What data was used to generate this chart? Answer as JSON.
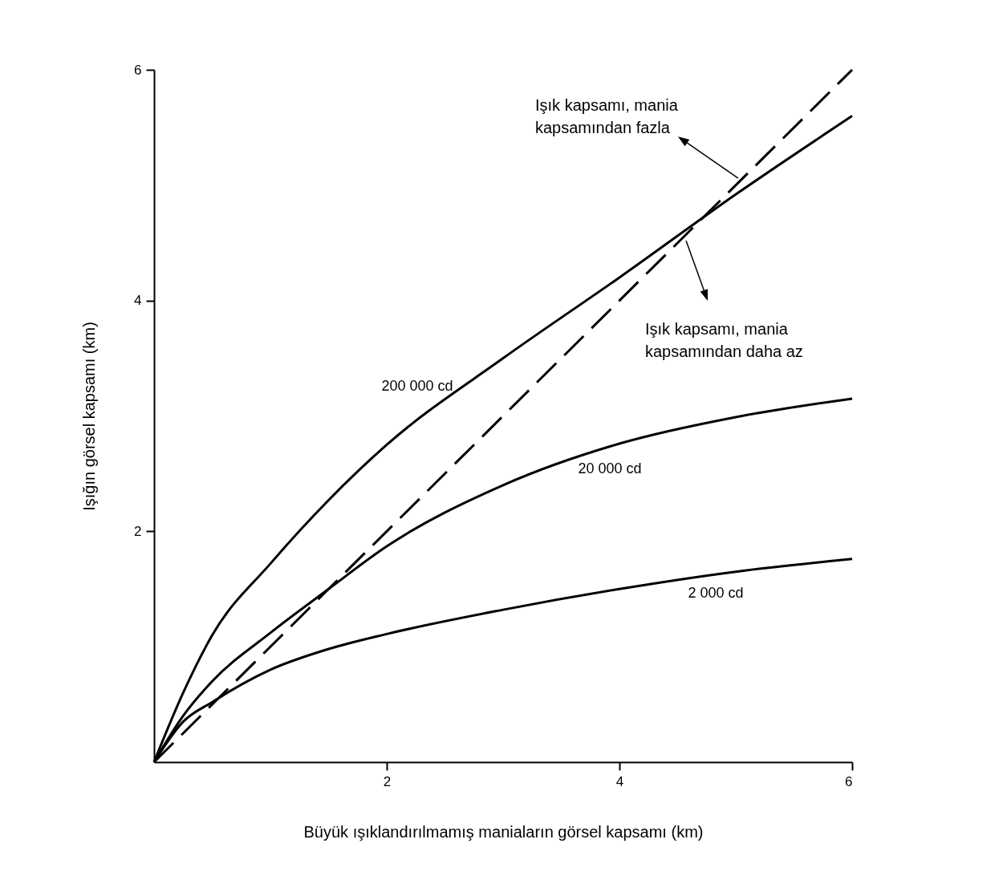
{
  "chart_data": {
    "type": "line",
    "xlabel": "Büyük ışıklandırılmamış maniaların görsel kapsamı (km)",
    "ylabel": "Işığın görsel kapsamı (km)",
    "xlim": [
      0,
      6
    ],
    "ylim": [
      0,
      6
    ],
    "xticks": [
      2,
      4,
      6
    ],
    "yticks": [
      2,
      4,
      6
    ],
    "marker": "none",
    "series": [
      {
        "name": "200 000 cd",
        "color": "#000000",
        "line_style": "solid",
        "x": [
          0,
          0.25,
          0.5,
          1,
          1.5,
          2,
          3,
          4,
          5,
          6
        ],
        "values": [
          0,
          0.6,
          1.1,
          1.72,
          2.27,
          2.75,
          3.5,
          4.2,
          4.92,
          5.6
        ]
      },
      {
        "name": "20 000 cd",
        "color": "#000000",
        "line_style": "solid",
        "x": [
          0,
          0.25,
          0.5,
          1,
          1.5,
          2,
          3,
          4,
          5,
          6
        ],
        "values": [
          0,
          0.4,
          0.7,
          1.12,
          1.5,
          1.87,
          2.4,
          2.76,
          2.99,
          3.15
        ]
      },
      {
        "name": "2 000 cd",
        "color": "#000000",
        "line_style": "solid",
        "x": [
          0,
          0.25,
          0.5,
          1,
          1.5,
          2,
          3,
          4,
          5,
          6
        ],
        "values": [
          0,
          0.35,
          0.52,
          0.8,
          0.98,
          1.11,
          1.32,
          1.5,
          1.65,
          1.76
        ]
      },
      {
        "color": "#000000",
        "line_style": "dashed",
        "x": [
          0,
          6
        ],
        "values": [
          0,
          6
        ]
      }
    ],
    "annotations": [
      {
        "text": "Işık kapsamı, mania\nkapsamından fazla",
        "x": 5.02,
        "y": 5.06
      },
      "Işık kapsamı, mania\nkapsamından daha az"
    ]
  }
}
